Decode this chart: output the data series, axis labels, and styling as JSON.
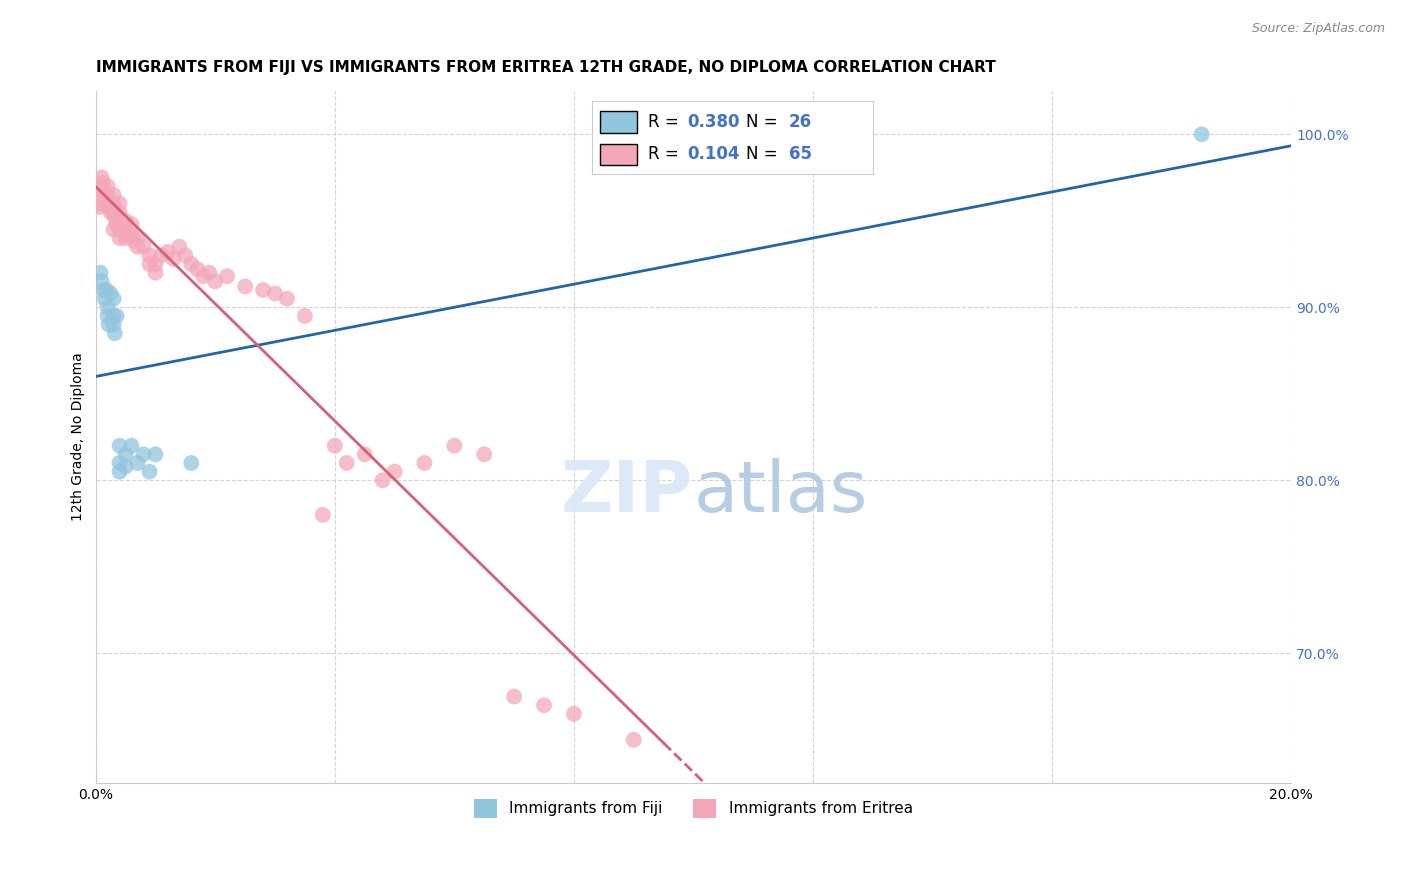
{
  "title": "IMMIGRANTS FROM FIJI VS IMMIGRANTS FROM ERITREA 12TH GRADE, NO DIPLOMA CORRELATION CHART",
  "source": "Source: ZipAtlas.com",
  "ylabel": "12th Grade, No Diploma",
  "xlim": [
    0.0,
    0.2
  ],
  "ylim": [
    0.625,
    1.025
  ],
  "ytick_labels": [
    "90.0%",
    "100.0%"
  ],
  "yticks": [
    0.9,
    1.0
  ],
  "right_ytick_labels": [
    "90.0%",
    "100.0%",
    "80.0%",
    "70.0%"
  ],
  "fiji_color": "#92c5de",
  "eritrea_color": "#f4a7b9",
  "fiji_line_color": "#2166ac",
  "eritrea_line_color": "#d6607a",
  "fiji_R": 0.38,
  "fiji_N": 26,
  "eritrea_R": 0.104,
  "eritrea_N": 65,
  "legend_label_fiji": "Immigrants from Fiji",
  "legend_label_eritrea": "Immigrants from Eritrea",
  "fiji_scatter_x": [
    0.0008,
    0.001,
    0.0013,
    0.0015,
    0.0018,
    0.002,
    0.002,
    0.0022,
    0.0025,
    0.003,
    0.003,
    0.003,
    0.0032,
    0.0035,
    0.004,
    0.004,
    0.004,
    0.005,
    0.005,
    0.006,
    0.007,
    0.008,
    0.009,
    0.01,
    0.185,
    0.016
  ],
  "fiji_scatter_y": [
    0.92,
    0.915,
    0.91,
    0.905,
    0.91,
    0.9,
    0.895,
    0.89,
    0.908,
    0.905,
    0.895,
    0.89,
    0.885,
    0.895,
    0.82,
    0.81,
    0.805,
    0.815,
    0.808,
    0.82,
    0.81,
    0.815,
    0.805,
    0.815,
    1.0,
    0.81
  ],
  "eritrea_scatter_x": [
    0.0005,
    0.0007,
    0.001,
    0.001,
    0.0012,
    0.0015,
    0.0018,
    0.002,
    0.002,
    0.002,
    0.0022,
    0.0025,
    0.003,
    0.003,
    0.003,
    0.0032,
    0.0035,
    0.003,
    0.004,
    0.004,
    0.004,
    0.004,
    0.005,
    0.005,
    0.005,
    0.0055,
    0.006,
    0.006,
    0.0065,
    0.007,
    0.007,
    0.008,
    0.009,
    0.009,
    0.01,
    0.01,
    0.011,
    0.012,
    0.013,
    0.014,
    0.015,
    0.016,
    0.017,
    0.018,
    0.019,
    0.02,
    0.022,
    0.025,
    0.028,
    0.03,
    0.032,
    0.035,
    0.038,
    0.04,
    0.042,
    0.045,
    0.048,
    0.05,
    0.055,
    0.06,
    0.065,
    0.07,
    0.075,
    0.08,
    0.09
  ],
  "eritrea_scatter_y": [
    0.96,
    0.958,
    0.968,
    0.975,
    0.972,
    0.965,
    0.962,
    0.97,
    0.965,
    0.96,
    0.958,
    0.955,
    0.965,
    0.96,
    0.955,
    0.952,
    0.948,
    0.945,
    0.96,
    0.955,
    0.945,
    0.94,
    0.95,
    0.945,
    0.94,
    0.942,
    0.948,
    0.942,
    0.938,
    0.94,
    0.935,
    0.935,
    0.93,
    0.925,
    0.925,
    0.92,
    0.93,
    0.932,
    0.928,
    0.935,
    0.93,
    0.925,
    0.922,
    0.918,
    0.92,
    0.915,
    0.918,
    0.912,
    0.91,
    0.908,
    0.905,
    0.895,
    0.78,
    0.82,
    0.81,
    0.815,
    0.8,
    0.805,
    0.81,
    0.82,
    0.815,
    0.675,
    0.67,
    0.665,
    0.65
  ],
  "background_color": "#ffffff",
  "grid_color": "#d0d0d0",
  "right_ytick_color": "#4472c4",
  "title_fontsize": 11,
  "axis_label_fontsize": 10,
  "tick_fontsize": 10
}
